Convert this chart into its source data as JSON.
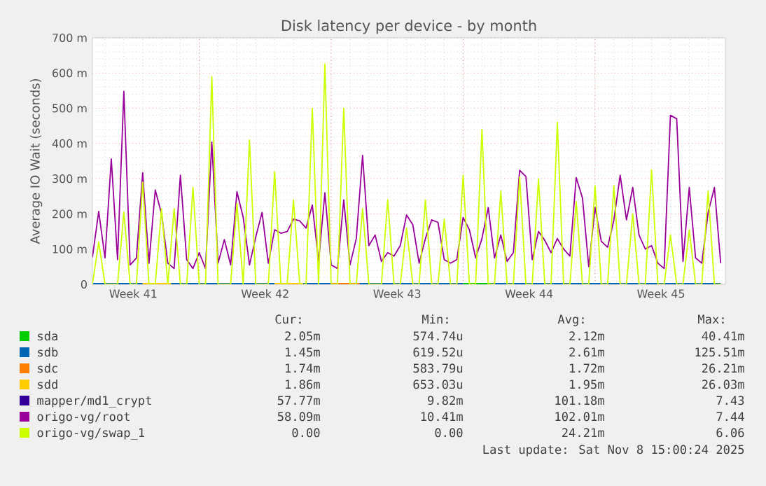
{
  "chart_data": {
    "type": "line",
    "title": "Disk latency per device - by month",
    "ylabel": "Average IO Wait (seconds)",
    "xlim": [
      "2025-10-07T08:00",
      "2025-11-09T22:00"
    ],
    "xticks": [
      {
        "value": "2025-10-09T12:00",
        "label": "Week 41"
      },
      {
        "value": "2025-10-13T00:00",
        "label": null
      },
      {
        "value": "2025-10-16T12:00",
        "label": "Week 42"
      },
      {
        "value": "2025-10-20T00:00",
        "label": null
      },
      {
        "value": "2025-10-23T12:00",
        "label": "Week 43"
      },
      {
        "value": "2025-10-27T00:00",
        "label": null
      },
      {
        "value": "2025-10-30T12:00",
        "label": "Week 44"
      },
      {
        "value": "2025-11-03T00:00",
        "label": null
      },
      {
        "value": "2025-11-06T12:00",
        "label": "Week 45"
      }
    ],
    "ylim": [
      0,
      700
    ],
    "yticks": [
      0,
      {
        "value": 100,
        "label": "100 m"
      },
      {
        "value": 200,
        "label": "200 m"
      },
      {
        "value": 300,
        "label": "300 m"
      },
      {
        "value": 400,
        "label": "400 m"
      },
      {
        "value": 500,
        "label": "500 m"
      },
      {
        "value": 600,
        "label": "600 m"
      },
      {
        "value": 700,
        "label": "700 m"
      }
    ],
    "grid": true,
    "legend": "bottom",
    "x": [
      "2025-10-07T08:00",
      "2025-10-07T16:00",
      "2025-10-08T00:00",
      "2025-10-08T08:00",
      "2025-10-08T16:00",
      "2025-10-09T00:00",
      "2025-10-09T08:00",
      "2025-10-09T16:00",
      "2025-10-10T00:00",
      "2025-10-10T08:00",
      "2025-10-10T16:00",
      "2025-10-11T00:00",
      "2025-10-11T08:00",
      "2025-10-11T16:00",
      "2025-10-12T00:00",
      "2025-10-12T08:00",
      "2025-10-12T16:00",
      "2025-10-13T00:00",
      "2025-10-13T08:00",
      "2025-10-13T16:00",
      "2025-10-14T00:00",
      "2025-10-14T08:00",
      "2025-10-14T16:00",
      "2025-10-15T00:00",
      "2025-10-15T08:00",
      "2025-10-15T16:00",
      "2025-10-16T00:00",
      "2025-10-16T08:00",
      "2025-10-16T16:00",
      "2025-10-17T00:00",
      "2025-10-17T08:00",
      "2025-10-17T16:00",
      "2025-10-18T00:00",
      "2025-10-18T08:00",
      "2025-10-18T16:00",
      "2025-10-19T00:00",
      "2025-10-19T08:00",
      "2025-10-19T16:00",
      "2025-10-20T00:00",
      "2025-10-20T08:00",
      "2025-10-20T16:00",
      "2025-10-21T00:00",
      "2025-10-21T08:00",
      "2025-10-21T16:00",
      "2025-10-22T00:00",
      "2025-10-22T08:00",
      "2025-10-22T16:00",
      "2025-10-23T00:00",
      "2025-10-23T08:00",
      "2025-10-23T16:00",
      "2025-10-24T00:00",
      "2025-10-24T08:00",
      "2025-10-24T16:00",
      "2025-10-25T00:00",
      "2025-10-25T08:00",
      "2025-10-25T16:00",
      "2025-10-26T00:00",
      "2025-10-26T08:00",
      "2025-10-26T16:00",
      "2025-10-27T00:00",
      "2025-10-27T08:00",
      "2025-10-27T16:00",
      "2025-10-28T00:00",
      "2025-10-28T08:00",
      "2025-10-28T16:00",
      "2025-10-29T00:00",
      "2025-10-29T08:00",
      "2025-10-29T16:00",
      "2025-10-30T00:00",
      "2025-10-30T08:00",
      "2025-10-30T16:00",
      "2025-10-31T00:00",
      "2025-10-31T08:00",
      "2025-10-31T16:00",
      "2025-11-01T00:00",
      "2025-11-01T08:00",
      "2025-11-01T16:00",
      "2025-11-02T00:00",
      "2025-11-02T08:00",
      "2025-11-02T16:00",
      "2025-11-03T00:00",
      "2025-11-03T08:00",
      "2025-11-03T16:00",
      "2025-11-04T00:00",
      "2025-11-04T08:00",
      "2025-11-04T16:00",
      "2025-11-05T00:00",
      "2025-11-05T08:00",
      "2025-11-05T16:00",
      "2025-11-06T00:00",
      "2025-11-06T08:00",
      "2025-11-06T16:00",
      "2025-11-07T00:00",
      "2025-11-07T08:00",
      "2025-11-07T16:00",
      "2025-11-08T00:00",
      "2025-11-08T08:00",
      "2025-11-08T16:00",
      "2025-11-09T00:00",
      "2025-11-09T08:00",
      "2025-11-09T16:00"
    ],
    "series": [
      {
        "name": "sda",
        "color": "#00cc00",
        "x": [
          "2025-10-27T00:00",
          "2025-10-28T12:00"
        ],
        "values": [
          2,
          2
        ]
      },
      {
        "name": "sdb",
        "color": "#0066b3",
        "x": [
          "2025-10-07T08:00",
          "2025-10-10T00:00",
          "2025-10-10T06:00",
          "2025-10-11T12:00",
          "2025-10-17T00:00",
          "2025-10-17T06:00",
          "2025-10-18T12:00",
          "2025-10-20T00:00",
          "2025-10-20T06:00",
          "2025-10-21T12:00",
          "2025-10-27T00:00",
          "2025-10-27T06:00",
          "2025-10-28T12:00",
          "2025-11-09T16:00"
        ],
        "values": [
          2,
          2,
          null,
          2,
          2,
          null,
          2,
          2,
          null,
          2,
          2,
          null,
          2,
          2
        ]
      },
      {
        "name": "sdc",
        "color": "#ff8000",
        "x": [
          "2025-10-20T00:00",
          "2025-10-21T12:00"
        ],
        "values": [
          2,
          2
        ]
      },
      {
        "name": "sdd",
        "color": "#ffcc00",
        "x": [
          "2025-10-10T00:00",
          "2025-10-11T12:00",
          "2025-10-11T18:00",
          "2025-10-17T00:00",
          "2025-10-18T12:00"
        ],
        "values": [
          2,
          2,
          null,
          2,
          2
        ]
      },
      {
        "name": "mapper/md1_crypt",
        "color": "#330099",
        "values": [
          null,
          null,
          null,
          null,
          null,
          null,
          null,
          null,
          null,
          null,
          null,
          null,
          null,
          null,
          null,
          null,
          null,
          null,
          null,
          null,
          null,
          null,
          null,
          null,
          null,
          null,
          null,
          null,
          null,
          null,
          null,
          null,
          null,
          null,
          null,
          null,
          null,
          null,
          null,
          null,
          null,
          null,
          null,
          null,
          null,
          null,
          null,
          null,
          null,
          null,
          null,
          null,
          null,
          null,
          null,
          null,
          null,
          null,
          null,
          null,
          null,
          null,
          null,
          null,
          null,
          null,
          null,
          null,
          null,
          null,
          null,
          null,
          null,
          null,
          null,
          null,
          null,
          null,
          null,
          null,
          null,
          null,
          null,
          null,
          null,
          null,
          null,
          null,
          null,
          null,
          null,
          null,
          null,
          null,
          null,
          null,
          null,
          null,
          null,
          null,
          null
        ]
      },
      {
        "name": "origo-vg/root",
        "color": "#990099",
        "values": [
          77,
          207,
          75,
          356,
          70,
          548,
          55,
          75,
          317,
          60,
          268,
          200,
          60,
          45,
          310,
          70,
          45,
          90,
          45,
          404,
          60,
          127,
          55,
          263,
          190,
          55,
          135,
          204,
          60,
          155,
          145,
          150,
          185,
          180,
          160,
          225,
          65,
          260,
          55,
          45,
          240,
          55,
          130,
          366,
          110,
          140,
          65,
          90,
          80,
          110,
          197,
          169,
          60,
          130,
          183,
          176,
          70,
          60,
          70,
          190,
          155,
          75,
          130,
          218,
          75,
          140,
          65,
          90,
          324,
          306,
          70,
          150,
          125,
          90,
          130,
          100,
          80,
          303,
          245,
          50,
          218,
          122,
          105,
          183,
          310,
          183,
          275,
          140,
          100,
          110,
          60,
          45,
          480,
          470,
          65,
          275,
          75,
          60,
          204,
          275,
          60
        ]
      },
      {
        "name": "origo-vg/swap_1",
        "color": "#ccff00",
        "values": [
          0,
          120,
          0,
          0,
          0,
          205,
          0,
          0,
          290,
          0,
          0,
          215,
          0,
          215,
          0,
          0,
          275,
          0,
          0,
          590,
          0,
          0,
          0,
          230,
          0,
          410,
          0,
          0,
          0,
          320,
          0,
          0,
          240,
          0,
          0,
          500,
          0,
          625,
          0,
          0,
          500,
          0,
          0,
          215,
          0,
          0,
          0,
          240,
          0,
          0,
          160,
          0,
          0,
          240,
          0,
          0,
          185,
          0,
          0,
          310,
          0,
          0,
          440,
          0,
          0,
          265,
          0,
          0,
          305,
          0,
          0,
          300,
          0,
          0,
          460,
          0,
          0,
          235,
          0,
          0,
          280,
          0,
          0,
          280,
          0,
          0,
          200,
          0,
          0,
          325,
          0,
          0,
          140,
          0,
          0,
          155,
          0,
          0,
          265,
          0,
          0
        ]
      }
    ],
    "annotations": [
      "Cur:",
      "Min:",
      "Avg:",
      "Max:",
      "2.05m",
      "574.74u",
      "2.12m",
      "40.41m",
      "1.45m",
      "619.52u",
      "2.61m",
      "125.51m",
      "1.74m",
      "583.79u",
      "1.72m",
      "26.21m",
      "1.86m",
      "653.03u",
      "1.95m",
      "26.03m",
      "57.77m",
      "9.82m",
      "101.18m",
      "7.43",
      "58.09m",
      "10.41m",
      "102.01m",
      "7.44",
      "0.00",
      "0.00",
      "24.21m",
      "6.06",
      "Last update: Sat Nov  8 15:00:24 2025"
    ]
  }
}
